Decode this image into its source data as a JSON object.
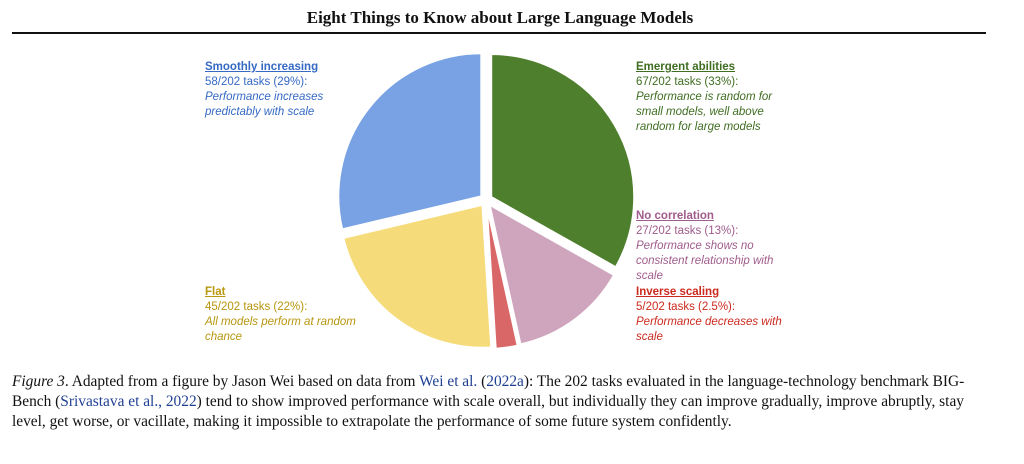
{
  "title": "Eight Things to Know about Large Language Models",
  "chart_data": {
    "type": "pie",
    "total": 202,
    "slices": [
      {
        "key": "emergent",
        "name": "Emergent abilities",
        "count": "67/202 tasks (33%):",
        "value": 67,
        "percent": 33,
        "desc": [
          "Performance is random for",
          "small models, well above",
          "random for large models"
        ],
        "color": "#4e7f2d",
        "text_color": "#3f6d22"
      },
      {
        "key": "nocorr",
        "name": "No correlation",
        "count": "27/202 tasks (13%):",
        "value": 27,
        "percent": 13,
        "desc": [
          "Performance shows no",
          "consistent relationship with",
          "scale"
        ],
        "color": "#cfa5be",
        "text_color": "#a05c8c"
      },
      {
        "key": "inverse",
        "name": "Inverse scaling",
        "count": "5/202 tasks (2.5%):",
        "value": 5,
        "percent": 2.5,
        "desc": [
          "Performance decreases with",
          "scale"
        ],
        "color": "#d96767",
        "text_color": "#cc2a1e"
      },
      {
        "key": "flat",
        "name": "Flat",
        "count": "45/202 tasks (22%):",
        "value": 45,
        "percent": 22,
        "desc": [
          "All models perform at random",
          "chance"
        ],
        "color": "#f6db7a",
        "text_color": "#b8960e"
      },
      {
        "key": "smooth",
        "name": "Smoothly increasing",
        "count": "58/202 tasks (29%):",
        "value": 58,
        "percent": 29,
        "desc": [
          "Performance increases",
          "predictably with scale"
        ],
        "color": "#78a2e3",
        "text_color": "#3569c4"
      }
    ]
  },
  "caption": {
    "label": "Figure 3",
    "p1": ". Adapted from a figure by Jason Wei based on data from ",
    "link1": "Wei et al.",
    "p2": " (",
    "link2": "2022a",
    "p3": "): The 202 tasks evaluated in the language-technology benchmark BIG-Bench (",
    "link3": "Srivastava et al., 2022",
    "p4": ") tend to show improved performance with scale overall, but individually they can improve gradually, improve abruptly, stay level, get worse, or vacillate, making it impossible to extrapolate the performance of some future system confidently."
  }
}
